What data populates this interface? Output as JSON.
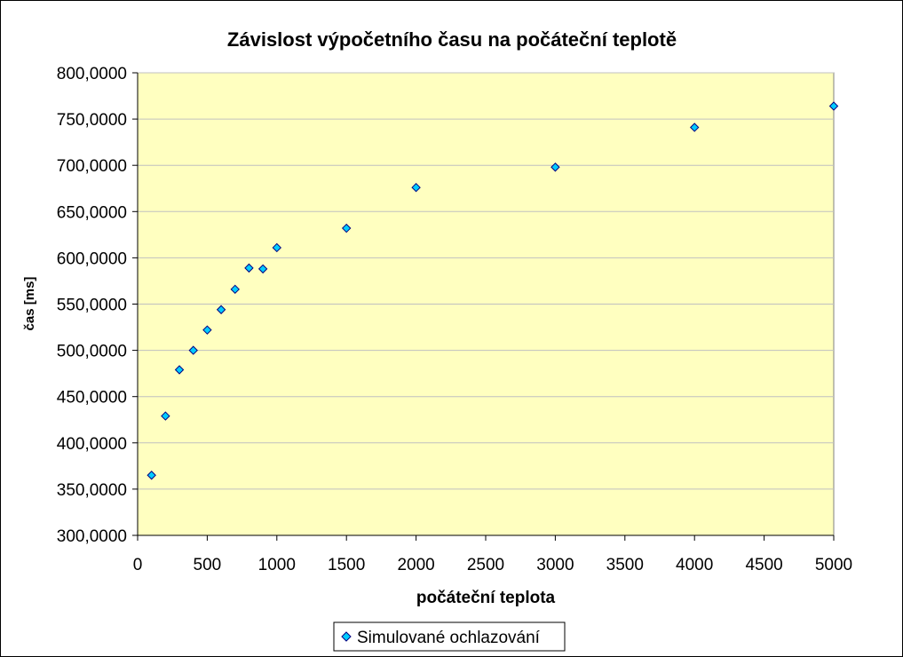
{
  "chart_data": {
    "type": "scatter",
    "title": "Závislost výpočetního času na počáteční teplotě",
    "xlabel": "počáteční teplota",
    "ylabel": "čas [ms]",
    "xlim": [
      0,
      5000
    ],
    "ylim": [
      300,
      800
    ],
    "x_ticks": [
      0,
      500,
      1000,
      1500,
      2000,
      2500,
      3000,
      3500,
      4000,
      4500,
      5000
    ],
    "x_tick_labels": [
      "0",
      "500",
      "1000",
      "1500",
      "2000",
      "2500",
      "3000",
      "3500",
      "4000",
      "4500",
      "5000"
    ],
    "y_ticks": [
      300,
      350,
      400,
      450,
      500,
      550,
      600,
      650,
      700,
      750,
      800
    ],
    "y_tick_labels": [
      "300,0000",
      "350,0000",
      "400,0000",
      "450,0000",
      "500,0000",
      "550,0000",
      "600,0000",
      "650,0000",
      "700,0000",
      "750,0000",
      "800,0000"
    ],
    "grid": "horizontal",
    "legend_position": "bottom",
    "plot_background": "#FFFFC0",
    "series": [
      {
        "name": "Simulované ochlazování",
        "color": "#00CCFF",
        "marker": "diamond",
        "x": [
          100,
          200,
          300,
          400,
          500,
          600,
          700,
          800,
          900,
          1000,
          1500,
          2000,
          3000,
          4000,
          5000
        ],
        "y": [
          365,
          429,
          479,
          500,
          522,
          544,
          566,
          589,
          588,
          611,
          632,
          676,
          698,
          741,
          764
        ]
      }
    ]
  }
}
